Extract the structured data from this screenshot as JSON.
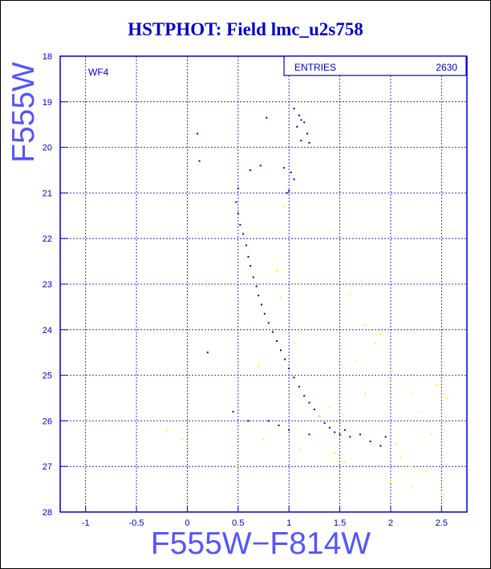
{
  "title": "HSTPHOT: Field lmc_u2s758",
  "chart_data": {
    "type": "scatter",
    "title": "HSTPHOT: Field lmc_u2s758",
    "xlabel": "F555W−F814W",
    "ylabel": "F555W",
    "xlim": [
      -1.25,
      2.75
    ],
    "ylim": [
      28,
      18
    ],
    "y_inverted": true,
    "xticks": [
      "-1",
      "-0.5",
      "0",
      "0.5",
      "1",
      "1.5",
      "2",
      "2.5"
    ],
    "yticks": [
      "18",
      "19",
      "20",
      "21",
      "22",
      "23",
      "24",
      "25",
      "26",
      "27",
      "28"
    ],
    "grid": true,
    "panel_label": "WF4",
    "stats": {
      "label": "ENTRIES",
      "value": "2630"
    },
    "colors": {
      "main": "#0000cc",
      "secondary": "#ffff00",
      "grid": "#0000cc"
    },
    "series": [
      {
        "color": "#0000cc",
        "points": [
          [
            1.05,
            19.15
          ],
          [
            1.1,
            19.3
          ],
          [
            1.12,
            19.4
          ],
          [
            1.08,
            19.55
          ],
          [
            1.15,
            19.45
          ],
          [
            1.18,
            19.7
          ],
          [
            1.12,
            19.85
          ],
          [
            0.78,
            19.35
          ],
          [
            0.1,
            19.7
          ],
          [
            1.2,
            19.9
          ],
          [
            0.12,
            20.3
          ],
          [
            0.95,
            20.45
          ],
          [
            1.02,
            20.55
          ],
          [
            1.05,
            20.7
          ],
          [
            1.0,
            20.95
          ],
          [
            0.98,
            21.0
          ],
          [
            0.2,
            24.5
          ],
          [
            0.72,
            20.4
          ],
          [
            0.62,
            20.5
          ],
          [
            0.45,
            25.8
          ],
          [
            0.5,
            20.9
          ],
          [
            0.48,
            21.2
          ],
          [
            0.5,
            21.45
          ],
          [
            0.52,
            21.7
          ],
          [
            0.55,
            21.9
          ],
          [
            0.58,
            22.15
          ],
          [
            0.6,
            22.4
          ],
          [
            0.62,
            22.6
          ],
          [
            0.65,
            22.85
          ],
          [
            0.68,
            23.05
          ],
          [
            0.7,
            23.25
          ],
          [
            0.73,
            23.45
          ],
          [
            0.76,
            23.65
          ],
          [
            0.8,
            23.85
          ],
          [
            0.84,
            24.05
          ],
          [
            0.88,
            24.25
          ],
          [
            0.92,
            24.45
          ],
          [
            0.96,
            24.65
          ],
          [
            1.0,
            24.85
          ],
          [
            1.05,
            25.05
          ],
          [
            1.1,
            25.25
          ],
          [
            1.15,
            25.45
          ],
          [
            1.2,
            25.6
          ],
          [
            1.25,
            25.75
          ],
          [
            1.3,
            25.9
          ],
          [
            1.35,
            26.05
          ],
          [
            1.4,
            26.15
          ],
          [
            1.45,
            26.25
          ],
          [
            1.5,
            26.3
          ],
          [
            1.55,
            26.2
          ],
          [
            1.6,
            26.35
          ],
          [
            1.7,
            26.3
          ],
          [
            1.8,
            26.45
          ],
          [
            1.9,
            26.55
          ],
          [
            1.95,
            26.35
          ],
          [
            0.9,
            26.1
          ],
          [
            0.8,
            26.0
          ],
          [
            0.6,
            26.0
          ],
          [
            1.0,
            26.2
          ],
          [
            1.2,
            26.3
          ]
        ]
      },
      {
        "color": "#ffff00",
        "points": [
          [
            -0.2,
            26.2
          ],
          [
            -0.05,
            26.4
          ],
          [
            0.7,
            24.8
          ],
          [
            1.6,
            23.2
          ],
          [
            1.65,
            24.7
          ],
          [
            1.75,
            23.9
          ],
          [
            1.85,
            24.3
          ],
          [
            1.9,
            24.1
          ],
          [
            2.0,
            24.9
          ],
          [
            2.2,
            25.4
          ],
          [
            2.3,
            25.8
          ],
          [
            2.45,
            25.2
          ],
          [
            2.5,
            26.0
          ],
          [
            2.55,
            25.5
          ],
          [
            2.4,
            26.3
          ],
          [
            2.2,
            27.0
          ],
          [
            2.1,
            26.8
          ],
          [
            1.95,
            27.2
          ],
          [
            2.0,
            27.3
          ],
          [
            2.35,
            27.1
          ],
          [
            2.5,
            27.6
          ],
          [
            2.2,
            27.45
          ],
          [
            2.05,
            26.5
          ],
          [
            1.75,
            25.4
          ],
          [
            1.4,
            25.7
          ],
          [
            1.45,
            26.7
          ],
          [
            1.55,
            26.9
          ],
          [
            1.1,
            26.6
          ],
          [
            0.75,
            26.4
          ],
          [
            1.3,
            25.9
          ],
          [
            0.5,
            27.0
          ],
          [
            0.95,
            21.3
          ],
          [
            0.88,
            22.7
          ],
          [
            0.92,
            23.3
          ],
          [
            1.05,
            24.3
          ]
        ]
      }
    ]
  }
}
